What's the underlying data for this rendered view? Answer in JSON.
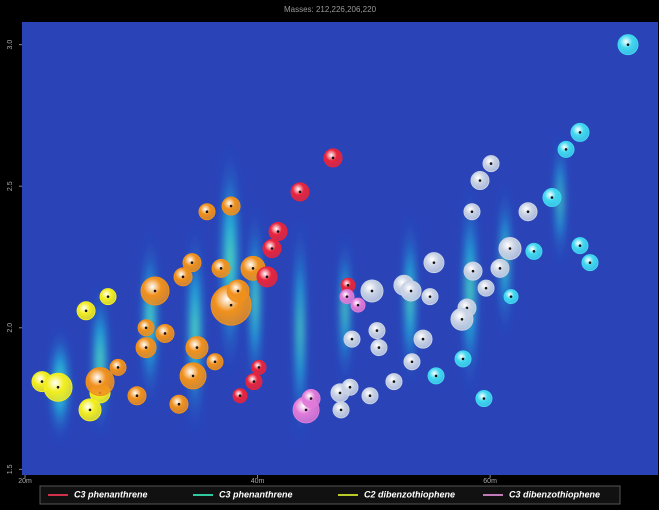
{
  "chart_data": {
    "type": "bubble",
    "title": "Masses: 212,226,206,220",
    "xlim": [
      19.74,
      74.44
    ],
    "ylim": [
      1.48,
      3.08
    ],
    "xticks": [
      {
        "value": 20,
        "label": "20m"
      },
      {
        "value": 40,
        "label": "40m"
      },
      {
        "value": 60,
        "label": "60m"
      }
    ],
    "yticks": [
      {
        "value": 3.0,
        "label": "3.0"
      },
      {
        "value": 2.5,
        "label": "2.5"
      },
      {
        "value": 2.0,
        "label": "2.0"
      },
      {
        "value": 1.5,
        "label": "1.5"
      }
    ],
    "legend": [
      {
        "name": "C3 phenanthrene",
        "color": "#d0304a"
      },
      {
        "name": "C3 phenanthrene",
        "color": "#2fc9a0"
      },
      {
        "name": "C2 dibenzothiophene",
        "color": "#b8c928"
      },
      {
        "name": "C3 dibenzothiophene",
        "color": "#c07ab8"
      }
    ],
    "series": [
      {
        "color": "#f2ee20",
        "x": [
          21.46,
          22.84,
          25.59,
          26.45,
          25.25,
          27.14
        ],
        "values": [
          1.81,
          1.79,
          1.71,
          1.77,
          2.06,
          2.11
        ],
        "sizes": [
          10,
          14,
          11,
          10,
          9,
          8
        ]
      },
      {
        "color": "#f0901c",
        "x": [
          26.45,
          28.0,
          29.63,
          30.41,
          30.41,
          32.04,
          31.18,
          33.59,
          34.36,
          34.79,
          34.45,
          33.24,
          36.34,
          35.65,
          37.72,
          36.86,
          39.61,
          37.72,
          38.32
        ],
        "values": [
          1.81,
          1.86,
          1.76,
          1.93,
          2.0,
          1.98,
          2.13,
          2.18,
          2.23,
          1.93,
          1.83,
          1.73,
          1.88,
          2.41,
          2.43,
          2.21,
          2.21,
          2.08,
          2.13
        ],
        "sizes": [
          14,
          8,
          9,
          10,
          8,
          9,
          14,
          9,
          9,
          11,
          13,
          9,
          8,
          8,
          9,
          9,
          12,
          20,
          11
        ]
      },
      {
        "color": "#e8243c",
        "x": [
          40.81,
          41.24,
          41.76,
          43.65,
          46.49,
          38.49,
          39.69,
          40.12,
          47.78
        ],
        "values": [
          2.18,
          2.28,
          2.34,
          2.48,
          2.6,
          1.76,
          1.81,
          1.86,
          2.15
        ],
        "sizes": [
          10,
          9,
          9,
          9,
          9,
          7,
          8,
          7,
          7
        ]
      },
      {
        "color": "#e07ad8",
        "x": [
          44.17,
          44.6,
          47.69,
          48.64
        ],
        "values": [
          1.71,
          1.75,
          2.11,
          2.08
        ],
        "sizes": [
          13,
          9,
          7,
          7
        ]
      },
      {
        "color": "#c8d2e4",
        "x": [
          49.84,
          52.59,
          53.2,
          55.17,
          54.83,
          58.53,
          59.65,
          58.01,
          57.58,
          60.85,
          61.71,
          59.13,
          60.08,
          58.44,
          63.26,
          48.12,
          50.27,
          50.44,
          53.28,
          54.23,
          51.73,
          47.09,
          47.95,
          49.67,
          47.18
        ],
        "values": [
          2.13,
          2.15,
          2.13,
          2.23,
          2.11,
          2.2,
          2.14,
          2.07,
          2.03,
          2.21,
          2.28,
          2.52,
          2.58,
          2.41,
          2.41,
          1.96,
          1.99,
          1.93,
          1.88,
          1.96,
          1.81,
          1.77,
          1.79,
          1.76,
          1.71
        ],
        "sizes": [
          11,
          10,
          10,
          10,
          8,
          9,
          8,
          9,
          11,
          9,
          11,
          9,
          8,
          8,
          9,
          8,
          8,
          8,
          8,
          9,
          8,
          9,
          8,
          8,
          8
        ]
      },
      {
        "color": "#40d8f0",
        "x": [
          71.86,
          67.73,
          66.53,
          65.32,
          63.77,
          67.73,
          68.59,
          61.8,
          55.35,
          57.67,
          59.47
        ],
        "values": [
          3.0,
          2.69,
          2.63,
          2.46,
          2.27,
          2.29,
          2.23,
          2.11,
          1.83,
          1.89,
          1.75
        ],
        "sizes": [
          10,
          9,
          8,
          9,
          8,
          8,
          8,
          7,
          8,
          8,
          8
        ]
      }
    ]
  }
}
